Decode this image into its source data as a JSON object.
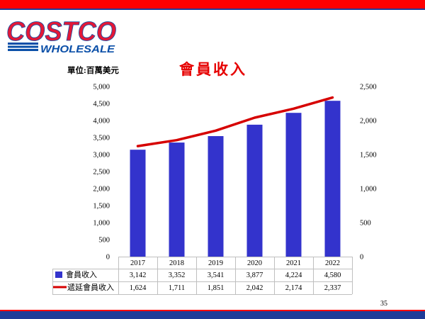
{
  "logo": {
    "brand": "COSTCO",
    "tagline": "WHOLESALE"
  },
  "footer": {
    "page_number": "35"
  },
  "colors": {
    "top_band": "#ff0000",
    "top_band_stripe": "#1f3c99",
    "bottom_band": "#1f3c99",
    "bottom_band_stripe": "#ff0000",
    "title": "#e60000",
    "bar": "#3333cc",
    "line": "#d60000",
    "table_grid": "#bfbfbf",
    "logo_red": "#e31837",
    "logo_blue": "#0a4fa8"
  },
  "chart_data": {
    "type": "bar",
    "title": "會員收入",
    "unit_label": "單位:百萬美元",
    "categories": [
      "2017",
      "2018",
      "2019",
      "2020",
      "2021",
      "2022"
    ],
    "series": [
      {
        "name": "會員收入",
        "type": "bar",
        "axis": "left",
        "values": [
          3142,
          3352,
          3541,
          3877,
          4224,
          4580
        ],
        "value_labels": [
          "3,142",
          "3,352",
          "3,541",
          "3,877",
          "4,224",
          "4,580"
        ]
      },
      {
        "name": "遞延會員收入",
        "type": "line",
        "axis": "right",
        "values": [
          1624,
          1711,
          1851,
          2042,
          2174,
          2337
        ],
        "value_labels": [
          "1,624",
          "1,711",
          "1,851",
          "2,042",
          "2,174",
          "2,337"
        ]
      }
    ],
    "y_left": {
      "ylim": [
        0,
        5000
      ],
      "tick_values": [
        0,
        500,
        1000,
        1500,
        2000,
        2500,
        3000,
        3500,
        4000,
        4500,
        5000
      ],
      "tick_labels": [
        "0",
        "500",
        "1,000",
        "1,500",
        "2,000",
        "2,500",
        "3,000",
        "3,500",
        "4,000",
        "4,500",
        "5,000"
      ]
    },
    "y_right": {
      "ylim": [
        0,
        2500
      ],
      "tick_values": [
        0,
        500,
        1000,
        1500,
        2000,
        2500
      ],
      "tick_labels": [
        "0",
        "500",
        "1,000",
        "1,500",
        "2,000",
        "2,500"
      ]
    },
    "grid": false,
    "data_table": true,
    "legend": "bottom-left"
  }
}
